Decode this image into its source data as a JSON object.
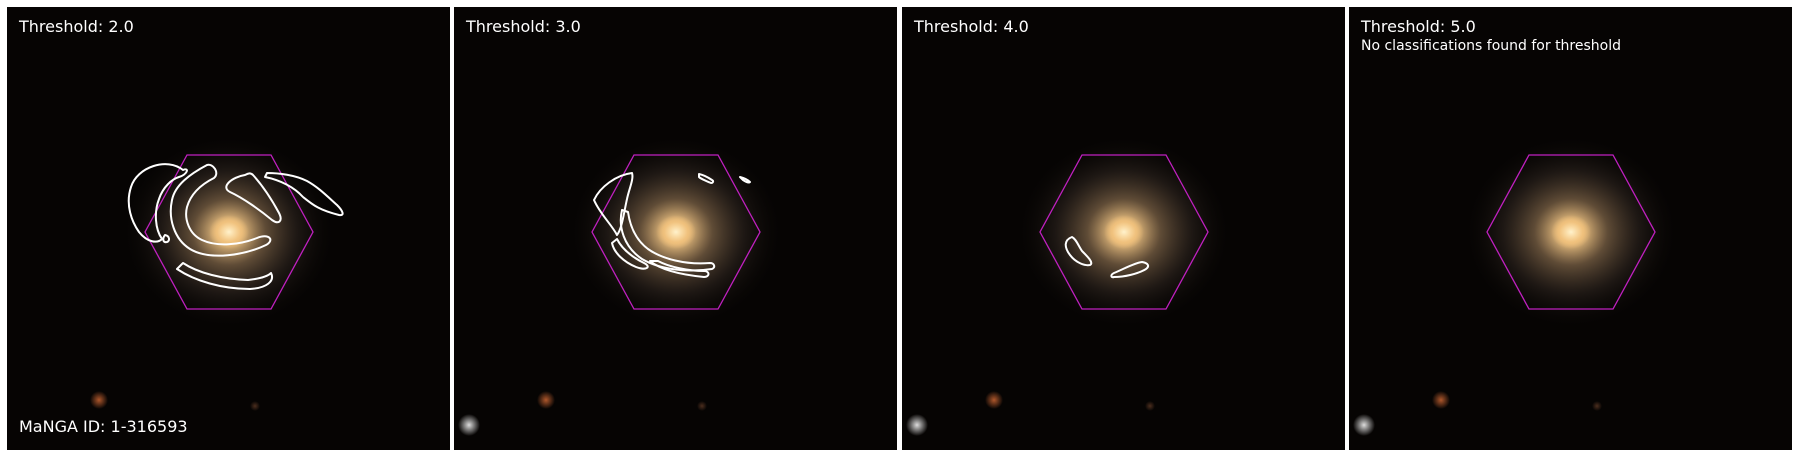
{
  "galaxy": {
    "id_label": "MaNGA ID: 1-316593"
  },
  "colors": {
    "background": "#060403",
    "hexagon": "#c020c0",
    "contour": "#ffffff",
    "galaxy_core": "#ffe3a0",
    "galaxy_halo": "#d8b07a"
  },
  "panels": [
    {
      "threshold_label": "Threshold: 2.0",
      "note": "",
      "has_contours": true
    },
    {
      "threshold_label": "Threshold: 3.0",
      "note": "",
      "has_contours": true
    },
    {
      "threshold_label": "Threshold: 4.0",
      "note": "",
      "has_contours": true
    },
    {
      "threshold_label": "Threshold: 5.0",
      "note": "No classifications found for threshold",
      "has_contours": false
    }
  ]
}
